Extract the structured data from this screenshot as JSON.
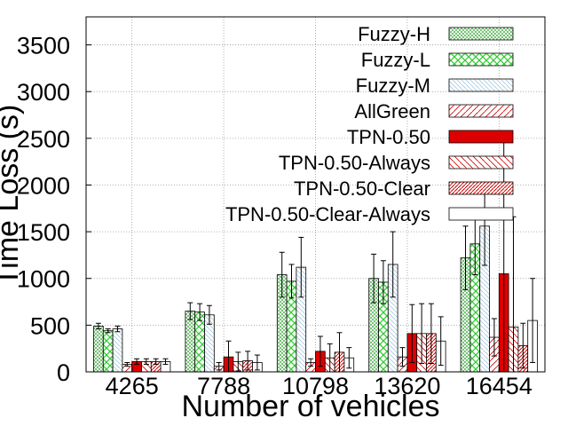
{
  "chart_data": {
    "type": "bar",
    "xlabel": "Number of vehicles",
    "ylabel": "Time Loss (s)",
    "categories": [
      "4265",
      "7788",
      "10798",
      "13620",
      "16454"
    ],
    "ylim": [
      0,
      3800
    ],
    "yticks": [
      0,
      500,
      1000,
      1500,
      2000,
      2500,
      3000,
      3500
    ],
    "grid": true,
    "legend_position": "top-right",
    "series": [
      {
        "name": "Fuzzy-H",
        "pattern": "cross-hatch-fine",
        "color": "#2ca02c",
        "values": [
          490,
          650,
          1040,
          1000,
          1220
        ],
        "errors": [
          30,
          90,
          240,
          260,
          340
        ]
      },
      {
        "name": "Fuzzy-L",
        "pattern": "cross-hatch-coarse",
        "color": "#33cc33",
        "values": [
          440,
          640,
          970,
          960,
          1370
        ],
        "errors": [
          20,
          90,
          180,
          230,
          330
        ]
      },
      {
        "name": "Fuzzy-M",
        "pattern": "diagonal-light",
        "color": "#a6c8e0",
        "values": [
          460,
          610,
          1120,
          1150,
          1560
        ],
        "errors": [
          30,
          100,
          320,
          350,
          420
        ]
      },
      {
        "name": "AllGreen",
        "pattern": "diagonal-up",
        "color": "#cc0000",
        "values": [
          80,
          60,
          100,
          160,
          370
        ],
        "errors": [
          20,
          40,
          40,
          100,
          200
        ]
      },
      {
        "name": "TPN-0.50",
        "pattern": "solid",
        "color": "#dd0000",
        "values": [
          110,
          160,
          220,
          410,
          1050
        ],
        "errors": [
          30,
          170,
          160,
          310,
          1500
        ]
      },
      {
        "name": "TPN-0.50-Always",
        "pattern": "diagonal-down",
        "color": "#cc0000",
        "values": [
          110,
          110,
          150,
          410,
          480
        ],
        "errors": [
          30,
          100,
          150,
          320,
          1180
        ]
      },
      {
        "name": "TPN-0.50-Clear",
        "pattern": "diagonal-dense",
        "color": "#cc0000",
        "values": [
          110,
          120,
          210,
          410,
          280
        ],
        "errors": [
          30,
          100,
          210,
          320,
          240
        ]
      },
      {
        "name": "TPN-0.50-Clear-Always",
        "pattern": "none",
        "color": "#000000",
        "values": [
          110,
          100,
          150,
          330,
          550
        ],
        "errors": [
          30,
          80,
          110,
          260,
          450
        ]
      }
    ]
  }
}
